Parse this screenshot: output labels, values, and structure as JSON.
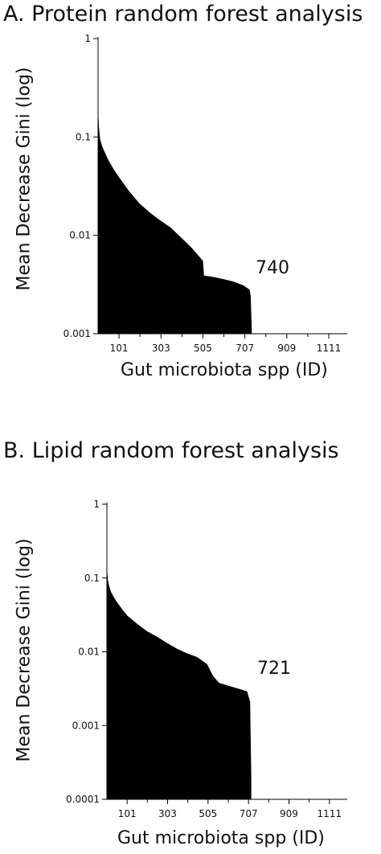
{
  "chart_data": [
    {
      "type": "area",
      "title": "A. Protein random forest analysis",
      "xlabel": "Gut microbiota spp (ID)",
      "ylabel": "Mean Decrease Gini (log)",
      "yscale": "log",
      "ylim": [
        0.001,
        1
      ],
      "xlim": [
        0,
        1200
      ],
      "xticks": [
        "101",
        "303",
        "505",
        "707",
        "909",
        "1111"
      ],
      "yticks": [
        "1",
        "0.1",
        "0.01",
        "0.001"
      ],
      "annotation": "740",
      "series": [
        {
          "x": [
            0,
            2,
            5,
            10,
            20,
            35,
            50,
            75,
            101,
            150,
            200,
            250,
            303,
            350,
            400,
            450,
            505,
            510,
            550,
            600,
            650,
            700,
            730,
            735,
            740
          ],
          "y": [
            0.25,
            0.16,
            0.12,
            0.095,
            0.08,
            0.068,
            0.058,
            0.047,
            0.039,
            0.028,
            0.021,
            0.017,
            0.014,
            0.012,
            0.0095,
            0.0075,
            0.0055,
            0.0039,
            0.0038,
            0.0036,
            0.0034,
            0.0031,
            0.0028,
            0.0024,
            0.0011
          ]
        }
      ]
    },
    {
      "type": "area",
      "title": "B. Lipid random forest analysis",
      "xlabel": "Gut microbiota spp (ID)",
      "ylabel": "Mean Decrease Gini (log)",
      "yscale": "log",
      "ylim": [
        0.0001,
        1
      ],
      "xlim": [
        0,
        1200
      ],
      "xticks": [
        "101",
        "303",
        "505",
        "707",
        "909",
        "1111"
      ],
      "yticks": [
        "1",
        "0.1",
        "0.01",
        "0.001",
        "0.0001"
      ],
      "annotation": "721",
      "series": [
        {
          "x": [
            0,
            2,
            5,
            10,
            20,
            35,
            50,
            75,
            101,
            150,
            200,
            250,
            303,
            350,
            400,
            450,
            500,
            530,
            560,
            600,
            650,
            700,
            715,
            721
          ],
          "y": [
            0.16,
            0.12,
            0.095,
            0.08,
            0.065,
            0.055,
            0.047,
            0.038,
            0.031,
            0.024,
            0.019,
            0.016,
            0.013,
            0.011,
            0.0095,
            0.0085,
            0.0068,
            0.0047,
            0.0038,
            0.0035,
            0.0032,
            0.0029,
            0.0021,
            0.0002
          ]
        }
      ]
    }
  ]
}
